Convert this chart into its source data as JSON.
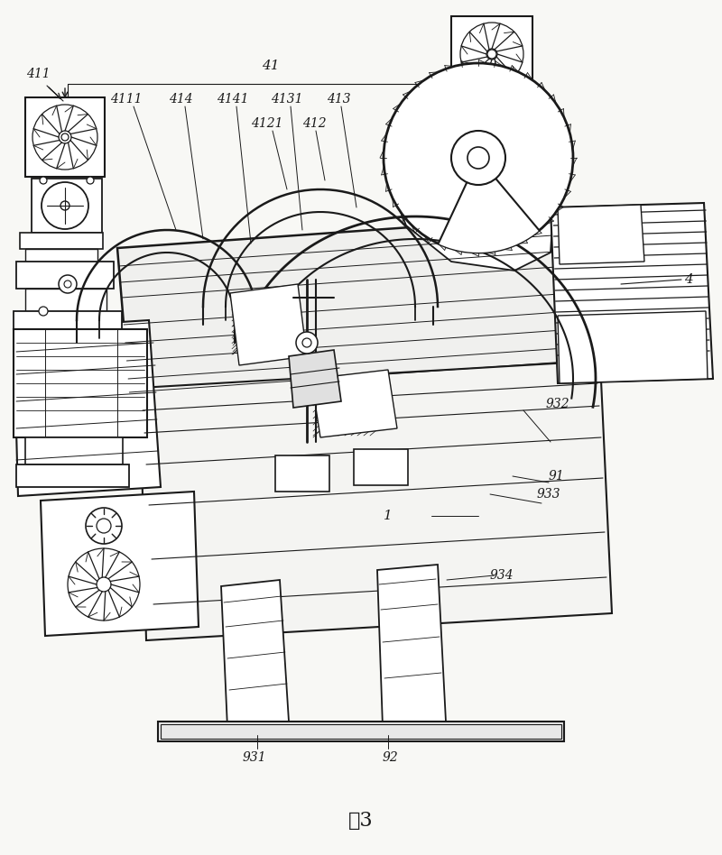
{
  "title": "图3",
  "bg_color": "#f8f8f5",
  "line_color": "#1a1a1a",
  "fig_width": 8.0,
  "fig_height": 9.48
}
